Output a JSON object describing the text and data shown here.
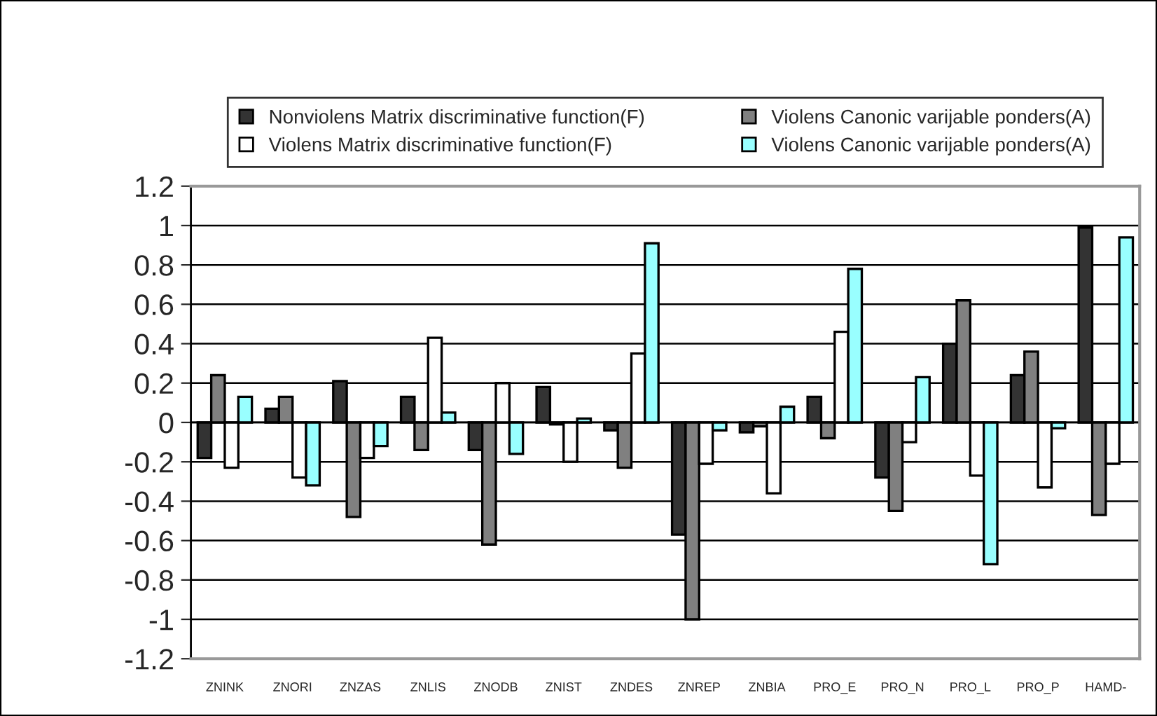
{
  "chart_data": {
    "type": "bar",
    "categories": [
      "ZNINK",
      "ZNORI",
      "ZNZAS",
      "ZNLIS",
      "ZNODB",
      "ZNIST",
      "ZNDES",
      "ZNREP",
      "ZNBIA",
      "PRO_E",
      "PRO_N",
      "PRO_L",
      "PRO_P",
      "HAMD-"
    ],
    "series": [
      {
        "name": "Nonviolens Matrix discriminative function(F)",
        "color": "#333333",
        "values": [
          -0.18,
          0.07,
          0.21,
          0.13,
          -0.14,
          0.18,
          -0.04,
          -0.57,
          -0.05,
          0.13,
          -0.28,
          0.4,
          0.24,
          0.99
        ]
      },
      {
        "name": "Violens Canonic varijable ponders(A)",
        "color": "#808080",
        "values": [
          0.24,
          0.13,
          -0.48,
          -0.14,
          -0.62,
          -0.01,
          -0.23,
          -1.0,
          -0.02,
          -0.08,
          -0.45,
          0.62,
          0.36,
          -0.47
        ]
      },
      {
        "name": "Violens Matrix discriminative function(F)",
        "color": "#ffffff",
        "values": [
          -0.23,
          -0.28,
          -0.18,
          0.43,
          0.2,
          -0.2,
          0.35,
          -0.21,
          -0.36,
          0.46,
          -0.1,
          -0.27,
          -0.33,
          -0.21
        ]
      },
      {
        "name": "Violens Canonic varijable ponders(A)",
        "color": "#99ffff",
        "values": [
          0.13,
          -0.32,
          -0.12,
          0.05,
          -0.16,
          0.02,
          0.91,
          -0.04,
          0.08,
          0.78,
          0.23,
          -0.72,
          -0.03,
          0.94
        ]
      }
    ],
    "ylim": [
      -1.2,
      1.2
    ],
    "yticks": [
      -1.2,
      -1,
      -0.8,
      -0.6,
      -0.4,
      -0.2,
      0,
      0.2,
      0.4,
      0.6,
      0.8,
      1,
      1.2
    ],
    "grid": "y",
    "legend": "top"
  }
}
